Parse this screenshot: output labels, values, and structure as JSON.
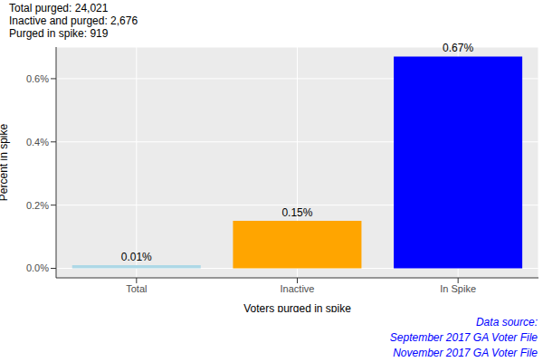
{
  "chart_data": {
    "type": "bar",
    "title": [
      "Total purged: 24,021",
      "Inactive and purged: 2,676",
      "Purged in spike: 919"
    ],
    "x_label": "Voters purged in spike",
    "y_label": "Percent in spike",
    "categories": [
      "Total",
      "Inactive",
      "In Spike"
    ],
    "values": [
      0.01,
      0.15,
      0.67
    ],
    "value_labels": [
      "0.01%",
      "0.15%",
      "0.67%"
    ],
    "colors": [
      "#add8e6",
      "#ffa500",
      "#0000ff"
    ],
    "ylim": [
      -0.03,
      0.7
    ],
    "yticks": [
      {
        "value": 0,
        "label": "0.0%"
      },
      {
        "value": 0.2,
        "label": "0.2%"
      },
      {
        "value": 0.4,
        "label": "0.4%"
      },
      {
        "value": 0.6,
        "label": "0.6%"
      }
    ],
    "grid": true,
    "data_labels": true,
    "caption": [
      "Data source:",
      "September 2017 GA Voter File",
      "November 2017 GA Voter File"
    ]
  }
}
